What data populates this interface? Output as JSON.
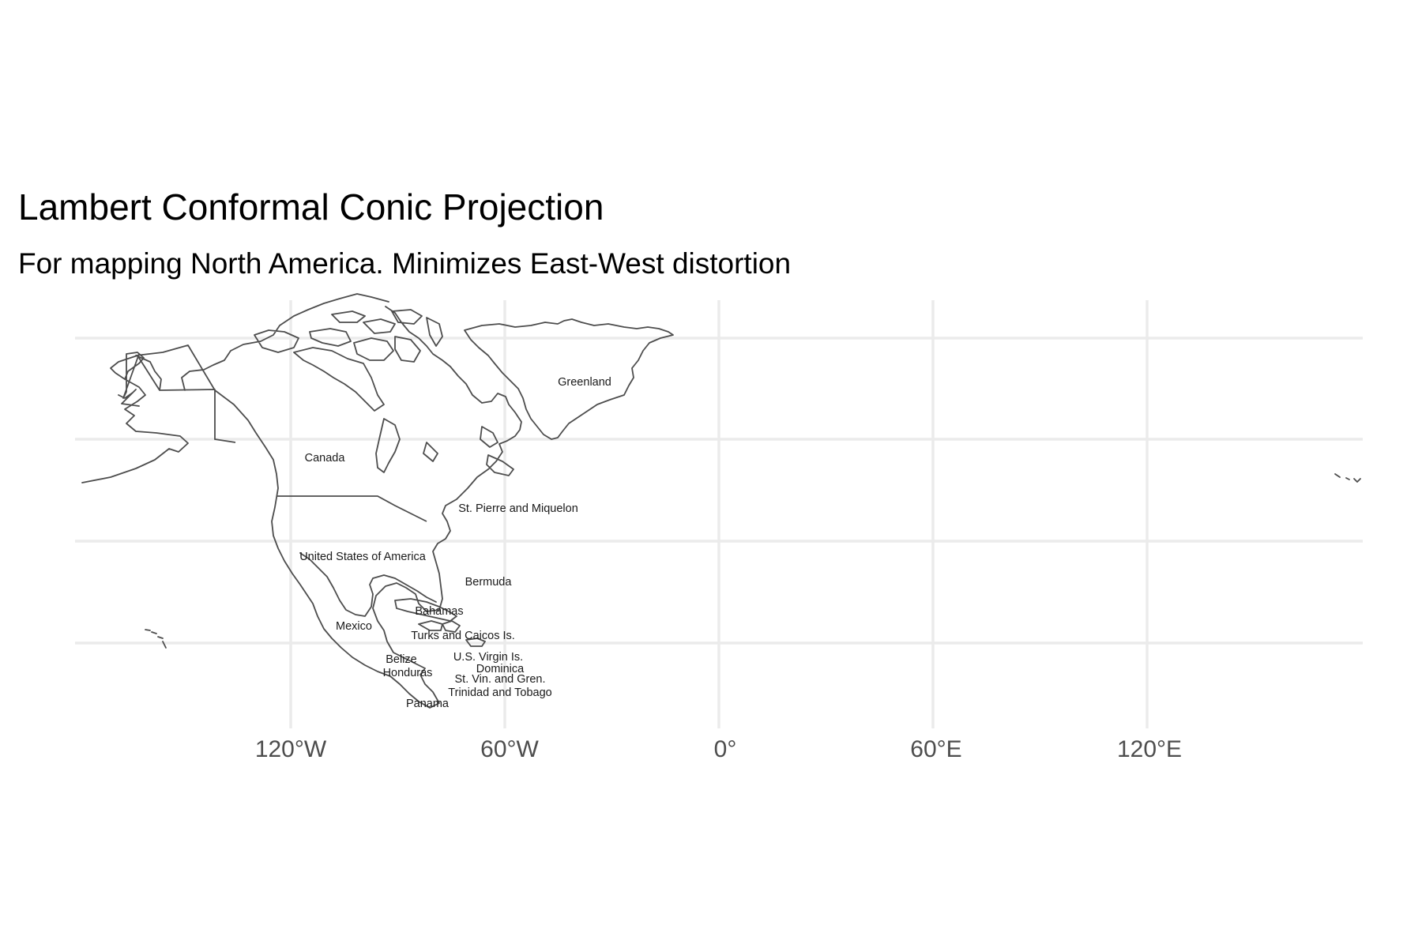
{
  "map": {
    "title": "Lambert Conformal Conic Projection",
    "subtitle": "For mapping North America. Minimizes East-West distortion",
    "x_tick_labels": [
      "120°W",
      "60°W",
      "0°",
      "60°E",
      "120°E"
    ],
    "country_labels": [
      "Greenland",
      "Canada",
      "St. Pierre and Miquelon",
      "United States of America",
      "Bermuda",
      "Bahamas",
      "Mexico",
      "Turks and Caicos Is.",
      "Belize",
      "U.S. Virgin Is.",
      "Dominica",
      "Honduras",
      "St. Vin. and Gren.",
      "Trinidad and Tobago",
      "Panama"
    ],
    "colors": {
      "background": "#ffffff",
      "gridlines": "#ebebeb",
      "outline": "#4d4d4d",
      "label_text": "#1a1a1a",
      "tick_text": "#4d4d4d"
    }
  }
}
